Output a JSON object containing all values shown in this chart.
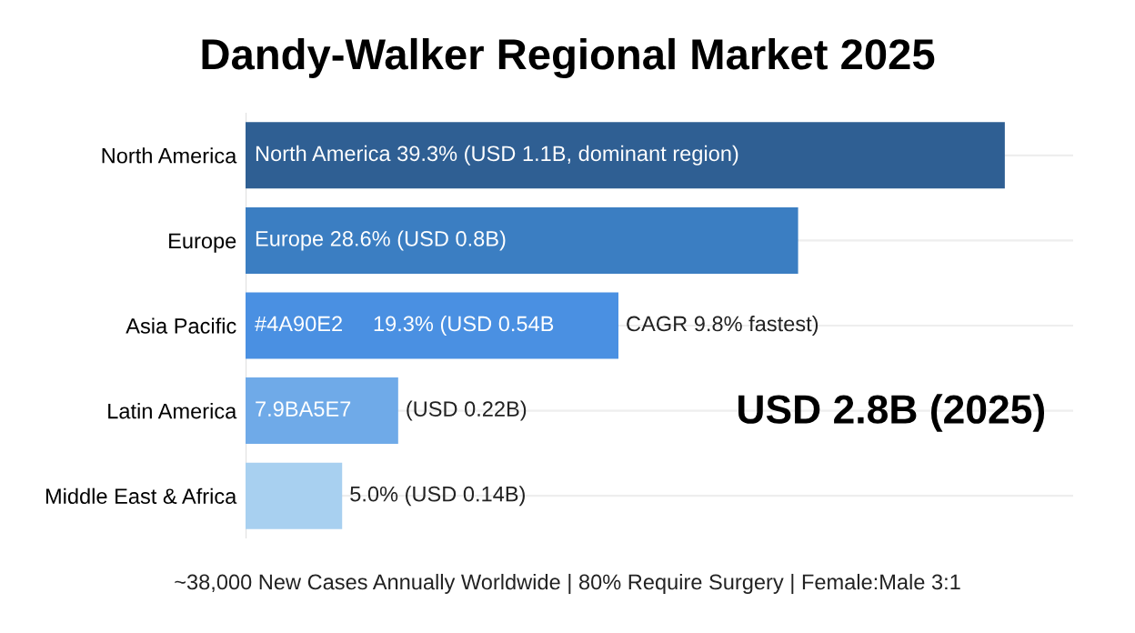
{
  "chart_data": {
    "type": "bar",
    "orientation": "horizontal",
    "title": "Dandy-Walker Regional Market 2025",
    "categories": [
      "North America",
      "Europe",
      "Asia Pacific",
      "Latin America",
      "Middle East & Africa"
    ],
    "values": [
      39.3,
      28.6,
      19.3,
      7.9,
      5.0
    ],
    "colors": [
      "#2f5f93",
      "#3b7ec2",
      "#4a90e2",
      "#6faae8",
      "#a8d0f0"
    ],
    "value_labels": [
      "North America 39.3% (USD 1.1B, dominant region)",
      "Europe 28.6% (USD 0.8B)",
      "#4A90E2     19.3% (USD 0.54B",
      "7.9BA5E7",
      "5.0% (USD 0.14B)"
    ],
    "annotations": [
      {
        "text": "CAGR 9.8% fastest)",
        "x": 19.3,
        "y": "Asia Pacific"
      },
      {
        "text": "(USD 0.22B)",
        "x": 7.9,
        "y": "Latin America"
      },
      "USD 2.8B (2025)",
      "~38,000 New Cases Annually Worldwide | 80% Require Surgery | Female:Male 3:1"
    ],
    "grid": "y",
    "tick_labels": "y"
  }
}
